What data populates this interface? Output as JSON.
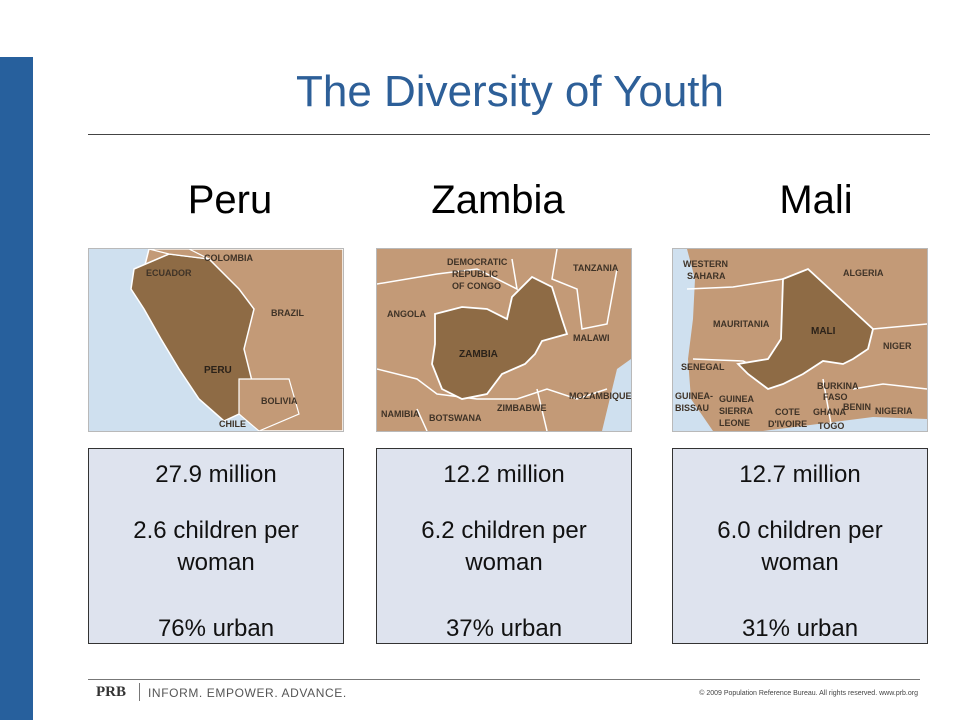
{
  "slide": {
    "title": "The Diversity of Youth"
  },
  "countries": [
    {
      "name": "Peru",
      "population": "27.9 million",
      "fertility": "2.6 children per woman",
      "urban": "76% urban",
      "map_labels": [
        "COLOMBIA",
        "ECUADOR",
        "BRAZIL",
        "PERU",
        "BOLIVIA",
        "CHILE"
      ]
    },
    {
      "name": "Zambia",
      "population": "12.2 million",
      "fertility": "6.2 children per woman",
      "urban": "37% urban",
      "map_labels": [
        "DEMOCRATIC",
        "REPUBLIC",
        "OF CONGO",
        "TANZANIA",
        "ANGOLA",
        "MALAWI",
        "ZAMBIA",
        "MOZAMBIQUE",
        "ZIMBABWE",
        "NAMIBIA",
        "BOTSWANA"
      ]
    },
    {
      "name": "Mali",
      "population": "12.7 million",
      "fertility": "6.0 children per woman",
      "urban": "31% urban",
      "map_labels": [
        "WESTERN",
        "SAHARA",
        "ALGERIA",
        "MAURITANIA",
        "MALI",
        "NIGER",
        "SENEGAL",
        "GUINEA-",
        "BISSAU",
        "BURKINA",
        "FASO",
        "GUINEA",
        "SIERRA",
        "LEONE",
        "COTE",
        "D'IVOIRE",
        "GHANA",
        "BENIN",
        "TOGO",
        "NIGERIA"
      ]
    }
  ],
  "footer": {
    "logo": "PRB",
    "tagline": "INFORM. EMPOWER. ADVANCE.",
    "copyright": "© 2009 Population Reference Bureau. All rights reserved. www.prb.org"
  },
  "colors": {
    "accent": "#27609d",
    "title": "#2d5f98",
    "stat_box": "#dee3ee",
    "land": "#c39a77",
    "highlight": "#8e6b45",
    "water": "#cfe0ef"
  }
}
